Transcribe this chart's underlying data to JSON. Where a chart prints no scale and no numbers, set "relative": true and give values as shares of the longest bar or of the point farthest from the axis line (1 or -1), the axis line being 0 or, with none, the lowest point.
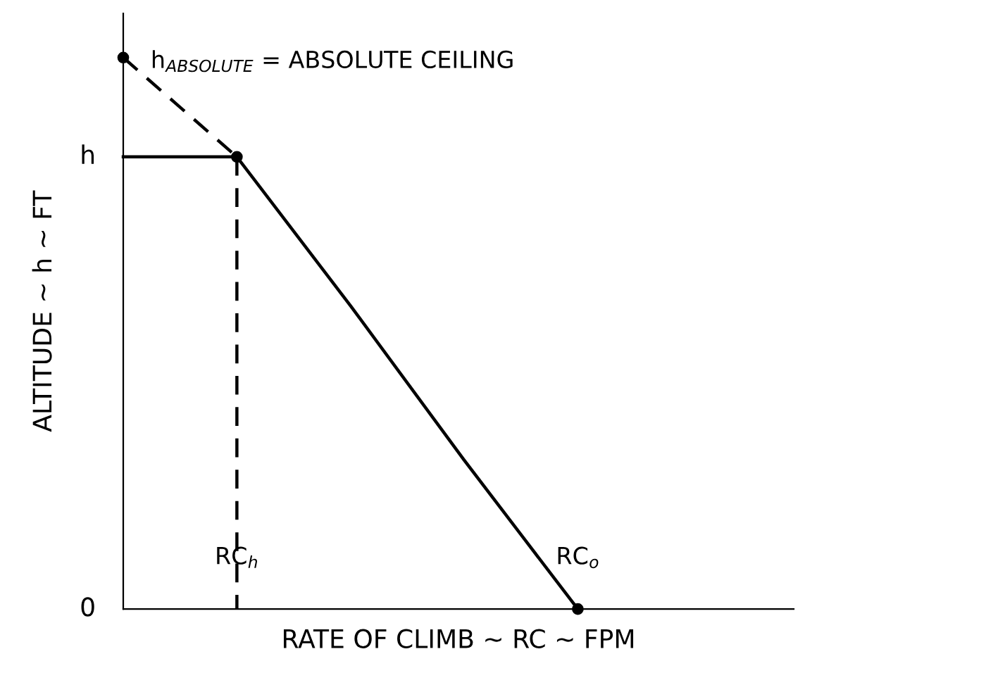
{
  "chart_data": {
    "type": "line",
    "relative": true,
    "tick_labels": "x",
    "grid": false,
    "legend": false,
    "xlabel": "RATE OF CLIMB ~ RC ~ FPM",
    "ylabel": "ALTITUDE ~ h ~ FT",
    "categories": [
      null,
      "RC$_{h}$",
      null,
      null,
      "RC$_{o}$",
      null
    ],
    "series": [
      {
        "color": "#000000",
        "line_style": "dashed",
        "marker": "circle",
        "values": [
          1,
          0.82,
          null,
          null,
          null,
          null
        ]
      },
      {
        "color": "#000000",
        "line_style": "solid",
        "marker": "none",
        "values": [
          null,
          0.82,
          0.55,
          0.27,
          0,
          null
        ]
      },
      {
        "color": "#000000",
        "line_style": "solid",
        "marker": "none",
        "values": [
          0.82,
          0.82,
          null,
          null,
          null,
          null
        ]
      },
      {
        "color": "#000000",
        "line_style": "dashed",
        "marker": "none",
        "x": [
          "RC$_{h}$",
          "RC$_{h}$"
        ],
        "values": [
          0.82,
          0
        ]
      },
      {
        "type": "scatter",
        "color": "#000000",
        "marker": "circle",
        "x": [
          "RC$_{o}$"
        ],
        "values": [
          0
        ]
      }
    ],
    "annotations": [
      "h$_{ABSOLUTE}$ = ABSOLUTE CEILING",
      "h",
      "0"
    ]
  }
}
